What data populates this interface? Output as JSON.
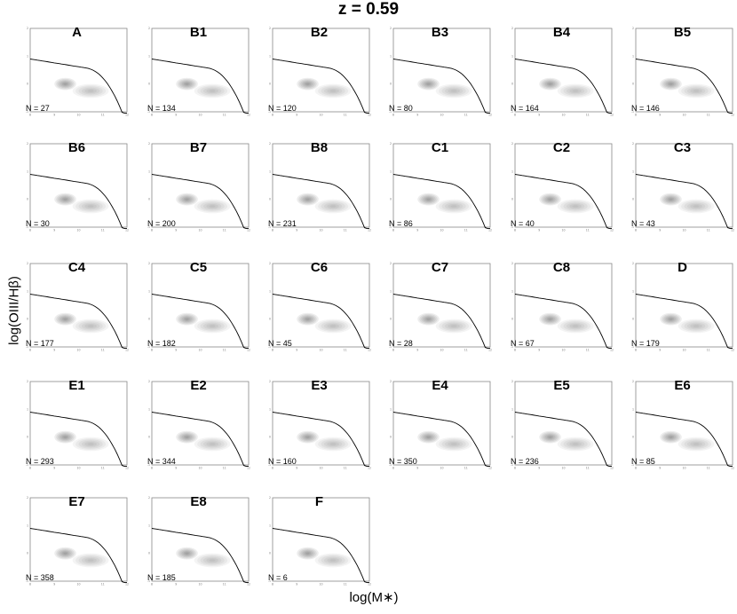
{
  "title": "z = 0.59",
  "chart_data": {
    "type": "contour",
    "title": "z = 0.59",
    "xlabel": "log(M∗)",
    "ylabel": "log(OIII/Hβ)",
    "xlim": [
      8,
      12
    ],
    "ylim": [
      -1,
      2
    ],
    "xticks": [
      "8",
      "9",
      "10",
      "11",
      "12"
    ],
    "yticks": [
      "2",
      "1",
      "0",
      "-1"
    ],
    "background_density": "grey filled contours (full galaxy sample)",
    "overlay_density": "red contour lines (cluster subset)",
    "dividing_line": "black demarcation curve",
    "colors": {
      "background": "#555555",
      "overlay": "#e03030",
      "line": "#000000"
    },
    "panels": [
      {
        "label": "A",
        "n_text": "N = 27",
        "n": 27,
        "center": [
          9.6,
          0.15
        ],
        "spread": [
          0.55,
          0.22
        ]
      },
      {
        "label": "B1",
        "n_text": "N = 134",
        "n": 134,
        "center": [
          10.55,
          0.1
        ],
        "spread": [
          0.35,
          0.35
        ]
      },
      {
        "label": "B2",
        "n_text": "N = 120",
        "n": 120,
        "center": [
          10.8,
          0.15
        ],
        "spread": [
          0.45,
          0.3
        ]
      },
      {
        "label": "B3",
        "n_text": "N = 80",
        "n": 80,
        "center": [
          10.7,
          0.2
        ],
        "spread": [
          0.55,
          0.35
        ]
      },
      {
        "label": "B4",
        "n_text": "N = 164",
        "n": 164,
        "center": [
          10.75,
          0.05
        ],
        "spread": [
          0.35,
          0.22
        ]
      },
      {
        "label": "B5",
        "n_text": "N = 146",
        "n": 146,
        "center": [
          10.8,
          0.15
        ],
        "spread": [
          0.35,
          0.3
        ]
      },
      {
        "label": "B6",
        "n_text": "N = 30",
        "n": 30,
        "center": [
          10.1,
          0.45
        ],
        "spread": [
          0.4,
          0.5
        ]
      },
      {
        "label": "B7",
        "n_text": "N = 200",
        "n": 200,
        "center": [
          10.6,
          0.1
        ],
        "spread": [
          0.3,
          0.35
        ]
      },
      {
        "label": "B8",
        "n_text": "N = 231",
        "n": 231,
        "center": [
          10.7,
          0.05
        ],
        "spread": [
          0.35,
          0.22
        ]
      },
      {
        "label": "C1",
        "n_text": "N = 86",
        "n": 86,
        "center": [
          10.0,
          0.15
        ],
        "spread": [
          0.8,
          0.55
        ]
      },
      {
        "label": "C2",
        "n_text": "N = 40",
        "n": 40,
        "center": [
          9.75,
          0.35
        ],
        "spread": [
          0.45,
          0.65
        ]
      },
      {
        "label": "C3",
        "n_text": "N = 43",
        "n": 43,
        "center": [
          9.85,
          0.15
        ],
        "spread": [
          0.8,
          0.5
        ]
      },
      {
        "label": "C4",
        "n_text": "N = 177",
        "n": 177,
        "center": [
          9.45,
          0.05
        ],
        "spread": [
          0.3,
          0.3
        ]
      },
      {
        "label": "C5",
        "n_text": "N = 182",
        "n": 182,
        "center": [
          9.9,
          0.15
        ],
        "spread": [
          0.45,
          0.35
        ]
      },
      {
        "label": "C6",
        "n_text": "N = 45",
        "n": 45,
        "center": [
          9.4,
          0.05
        ],
        "spread": [
          0.3,
          0.5
        ]
      },
      {
        "label": "C7",
        "n_text": "N = 28",
        "n": 28,
        "center": [
          9.1,
          0.05
        ],
        "spread": [
          0.25,
          0.15
        ]
      },
      {
        "label": "C8",
        "n_text": "N = 67",
        "n": 67,
        "center": [
          9.45,
          0.05
        ],
        "spread": [
          0.4,
          0.35
        ]
      },
      {
        "label": "D",
        "n_text": "N = 179",
        "n": 179,
        "center": [
          10.0,
          0.1
        ],
        "spread": [
          0.8,
          0.45
        ]
      },
      {
        "label": "E1",
        "n_text": "N = 293",
        "n": 293,
        "center": [
          9.9,
          0.15
        ],
        "spread": [
          0.5,
          0.4
        ]
      },
      {
        "label": "E2",
        "n_text": "N = 344",
        "n": 344,
        "center": [
          9.8,
          0.1
        ],
        "spread": [
          0.45,
          0.35
        ]
      },
      {
        "label": "E3",
        "n_text": "N = 160",
        "n": 160,
        "center": [
          9.6,
          0.1
        ],
        "spread": [
          0.5,
          0.4
        ]
      },
      {
        "label": "E4",
        "n_text": "N = 350",
        "n": 350,
        "center": [
          9.6,
          0.05
        ],
        "spread": [
          0.35,
          0.28
        ]
      },
      {
        "label": "E5",
        "n_text": "N = 236",
        "n": 236,
        "center": [
          9.7,
          0.05
        ],
        "spread": [
          0.4,
          0.32
        ]
      },
      {
        "label": "E6",
        "n_text": "N = 85",
        "n": 85,
        "center": [
          9.5,
          0.1
        ],
        "spread": [
          0.35,
          0.18
        ]
      },
      {
        "label": "E7",
        "n_text": "N = 358",
        "n": 358,
        "center": [
          10.2,
          0.05
        ],
        "spread": [
          0.55,
          0.4
        ]
      },
      {
        "label": "E8",
        "n_text": "N = 185",
        "n": 185,
        "center": [
          9.25,
          0.1
        ],
        "spread": [
          0.25,
          0.2
        ]
      },
      {
        "label": "F",
        "n_text": "N = 6",
        "n": 6,
        "center": [
          9.6,
          0.3
        ],
        "spread": [
          0.9,
          0.35
        ]
      }
    ]
  }
}
